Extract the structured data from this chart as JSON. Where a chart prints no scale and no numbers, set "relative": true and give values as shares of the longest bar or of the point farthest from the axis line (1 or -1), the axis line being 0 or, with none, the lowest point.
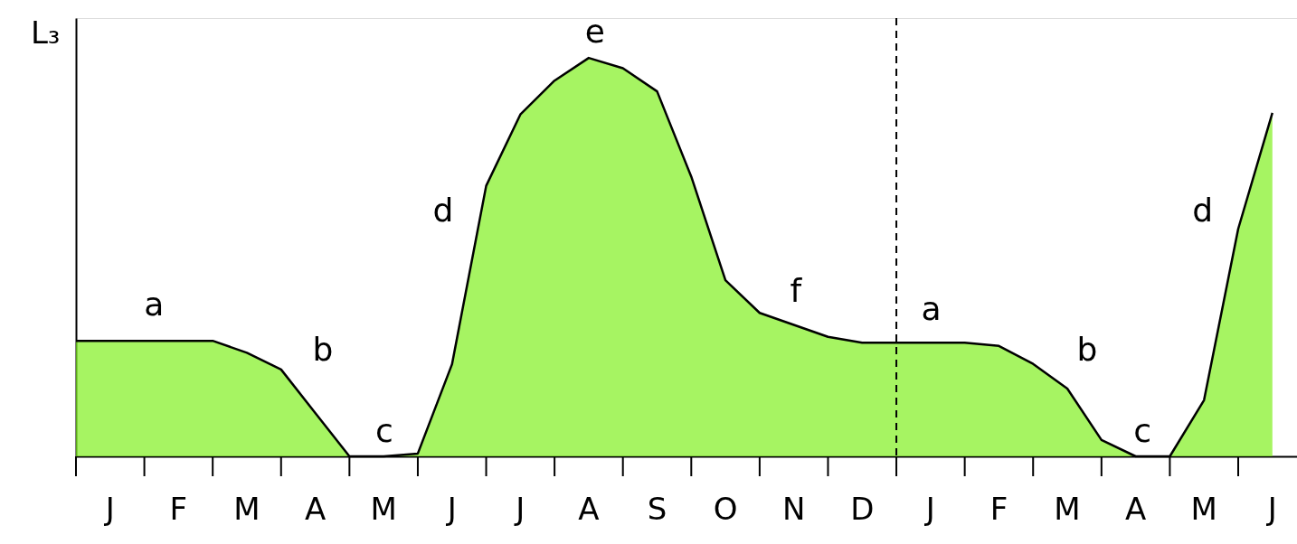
{
  "chart_data": {
    "type": "area",
    "relative": true,
    "ylabel": "L₃",
    "categories": [
      null,
      "J",
      null,
      "F",
      null,
      "M",
      null,
      "A",
      null,
      "M",
      null,
      "J",
      null,
      "J",
      null,
      "A",
      null,
      "S",
      null,
      "O",
      null,
      "N",
      null,
      "D",
      null,
      "J",
      null,
      "F",
      null,
      "M",
      null,
      "A",
      null,
      "M",
      null,
      "J"
    ],
    "series": [
      {
        "color": "#80f020",
        "values": [
          0.29,
          0.29,
          0.29,
          0.29,
          0.29,
          0.26,
          0.218,
          0.109,
          0,
          0,
          0.007,
          0.231,
          0.679,
          0.858,
          0.943,
          1.0,
          0.974,
          0.916,
          0.702,
          0.442,
          0.36,
          0.33,
          0.3,
          0.285,
          0.285,
          0.285,
          0.285,
          0.277,
          0.232,
          0.17,
          0.041,
          0,
          0,
          0.141,
          0.571,
          0.862
        ]
      }
    ],
    "tick_labels": "x",
    "marker": "none",
    "line_style": "solid",
    "annotations": [
      "a",
      "b",
      "c",
      "d",
      "e",
      "f",
      "a",
      "b",
      "c",
      "d"
    ]
  }
}
